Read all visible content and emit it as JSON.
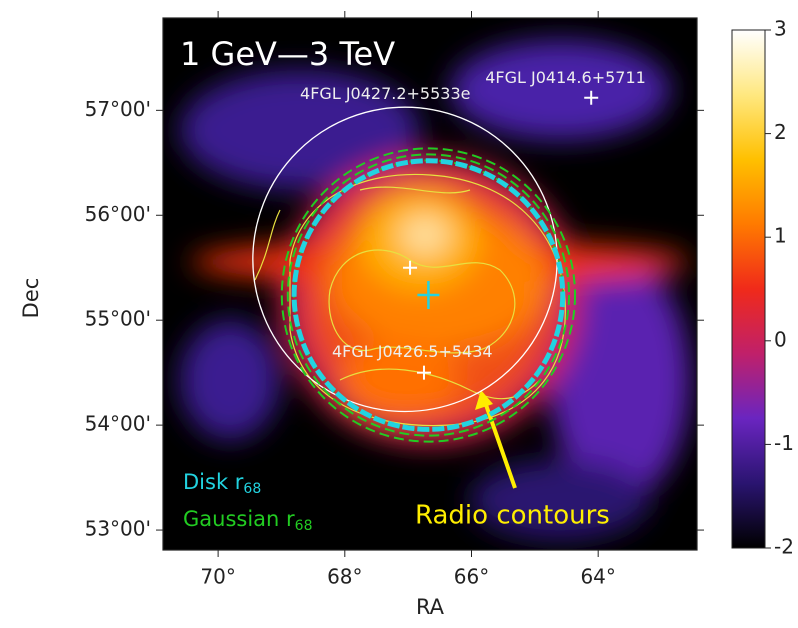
{
  "chart_data": {
    "type": "skymap",
    "title": "1 GeV—3 TeV",
    "xlabel": "RA",
    "ylabel": "Dec",
    "xlim": [
      70.87,
      62.44
    ],
    "xticks": [
      {
        "value": 70,
        "label": "70°"
      },
      {
        "value": 68,
        "label": "68°"
      },
      {
        "value": 66,
        "label": "66°"
      },
      {
        "value": 64,
        "label": "64°"
      }
    ],
    "ylim": [
      52.81,
      57.88
    ],
    "yticks": [
      {
        "value": 53,
        "label": "53°00'"
      },
      {
        "value": 54,
        "label": "54°00'"
      },
      {
        "value": 55,
        "label": "55°00'"
      },
      {
        "value": 56,
        "label": "56°00'"
      },
      {
        "value": 57,
        "label": "57°00'"
      }
    ],
    "colorbar": {
      "lim": [
        -2,
        3
      ],
      "ticks": [
        -2,
        -1,
        0,
        1,
        2,
        3
      ],
      "colors": [
        "#000000",
        "#2a1470",
        "#6a25c0",
        "#c0206a",
        "#f02a1a",
        "#ff7a00",
        "#ffc000",
        "#ffe880",
        "#ffffff"
      ]
    },
    "sources": [
      {
        "name": "4FGL J0427.2+5533e",
        "ra": 66.97,
        "dec": 55.5
      },
      {
        "name": "4FGL J0414.6+5711",
        "ra": 64.11,
        "dec": 57.12
      },
      {
        "name": "4FGL J0426.5+5434",
        "ra": 66.75,
        "dec": 54.5
      }
    ],
    "regions": [
      {
        "color": "#ffffff",
        "ra": 67.05,
        "dec": 55.58,
        "radius": 1.45
      },
      {
        "name": "Gaussian r",
        "subscript": "68",
        "color": "#22cc22",
        "ra": 66.68,
        "dec": 55.24,
        "radius": 1.34
      },
      {
        "name": "Disk r",
        "subscript": "68",
        "color": "#22d3e0",
        "ra": 66.68,
        "dec": 55.24,
        "radius": 1.28
      }
    ],
    "annotation": {
      "text": "Radio contours",
      "color": "#ffee00"
    }
  }
}
